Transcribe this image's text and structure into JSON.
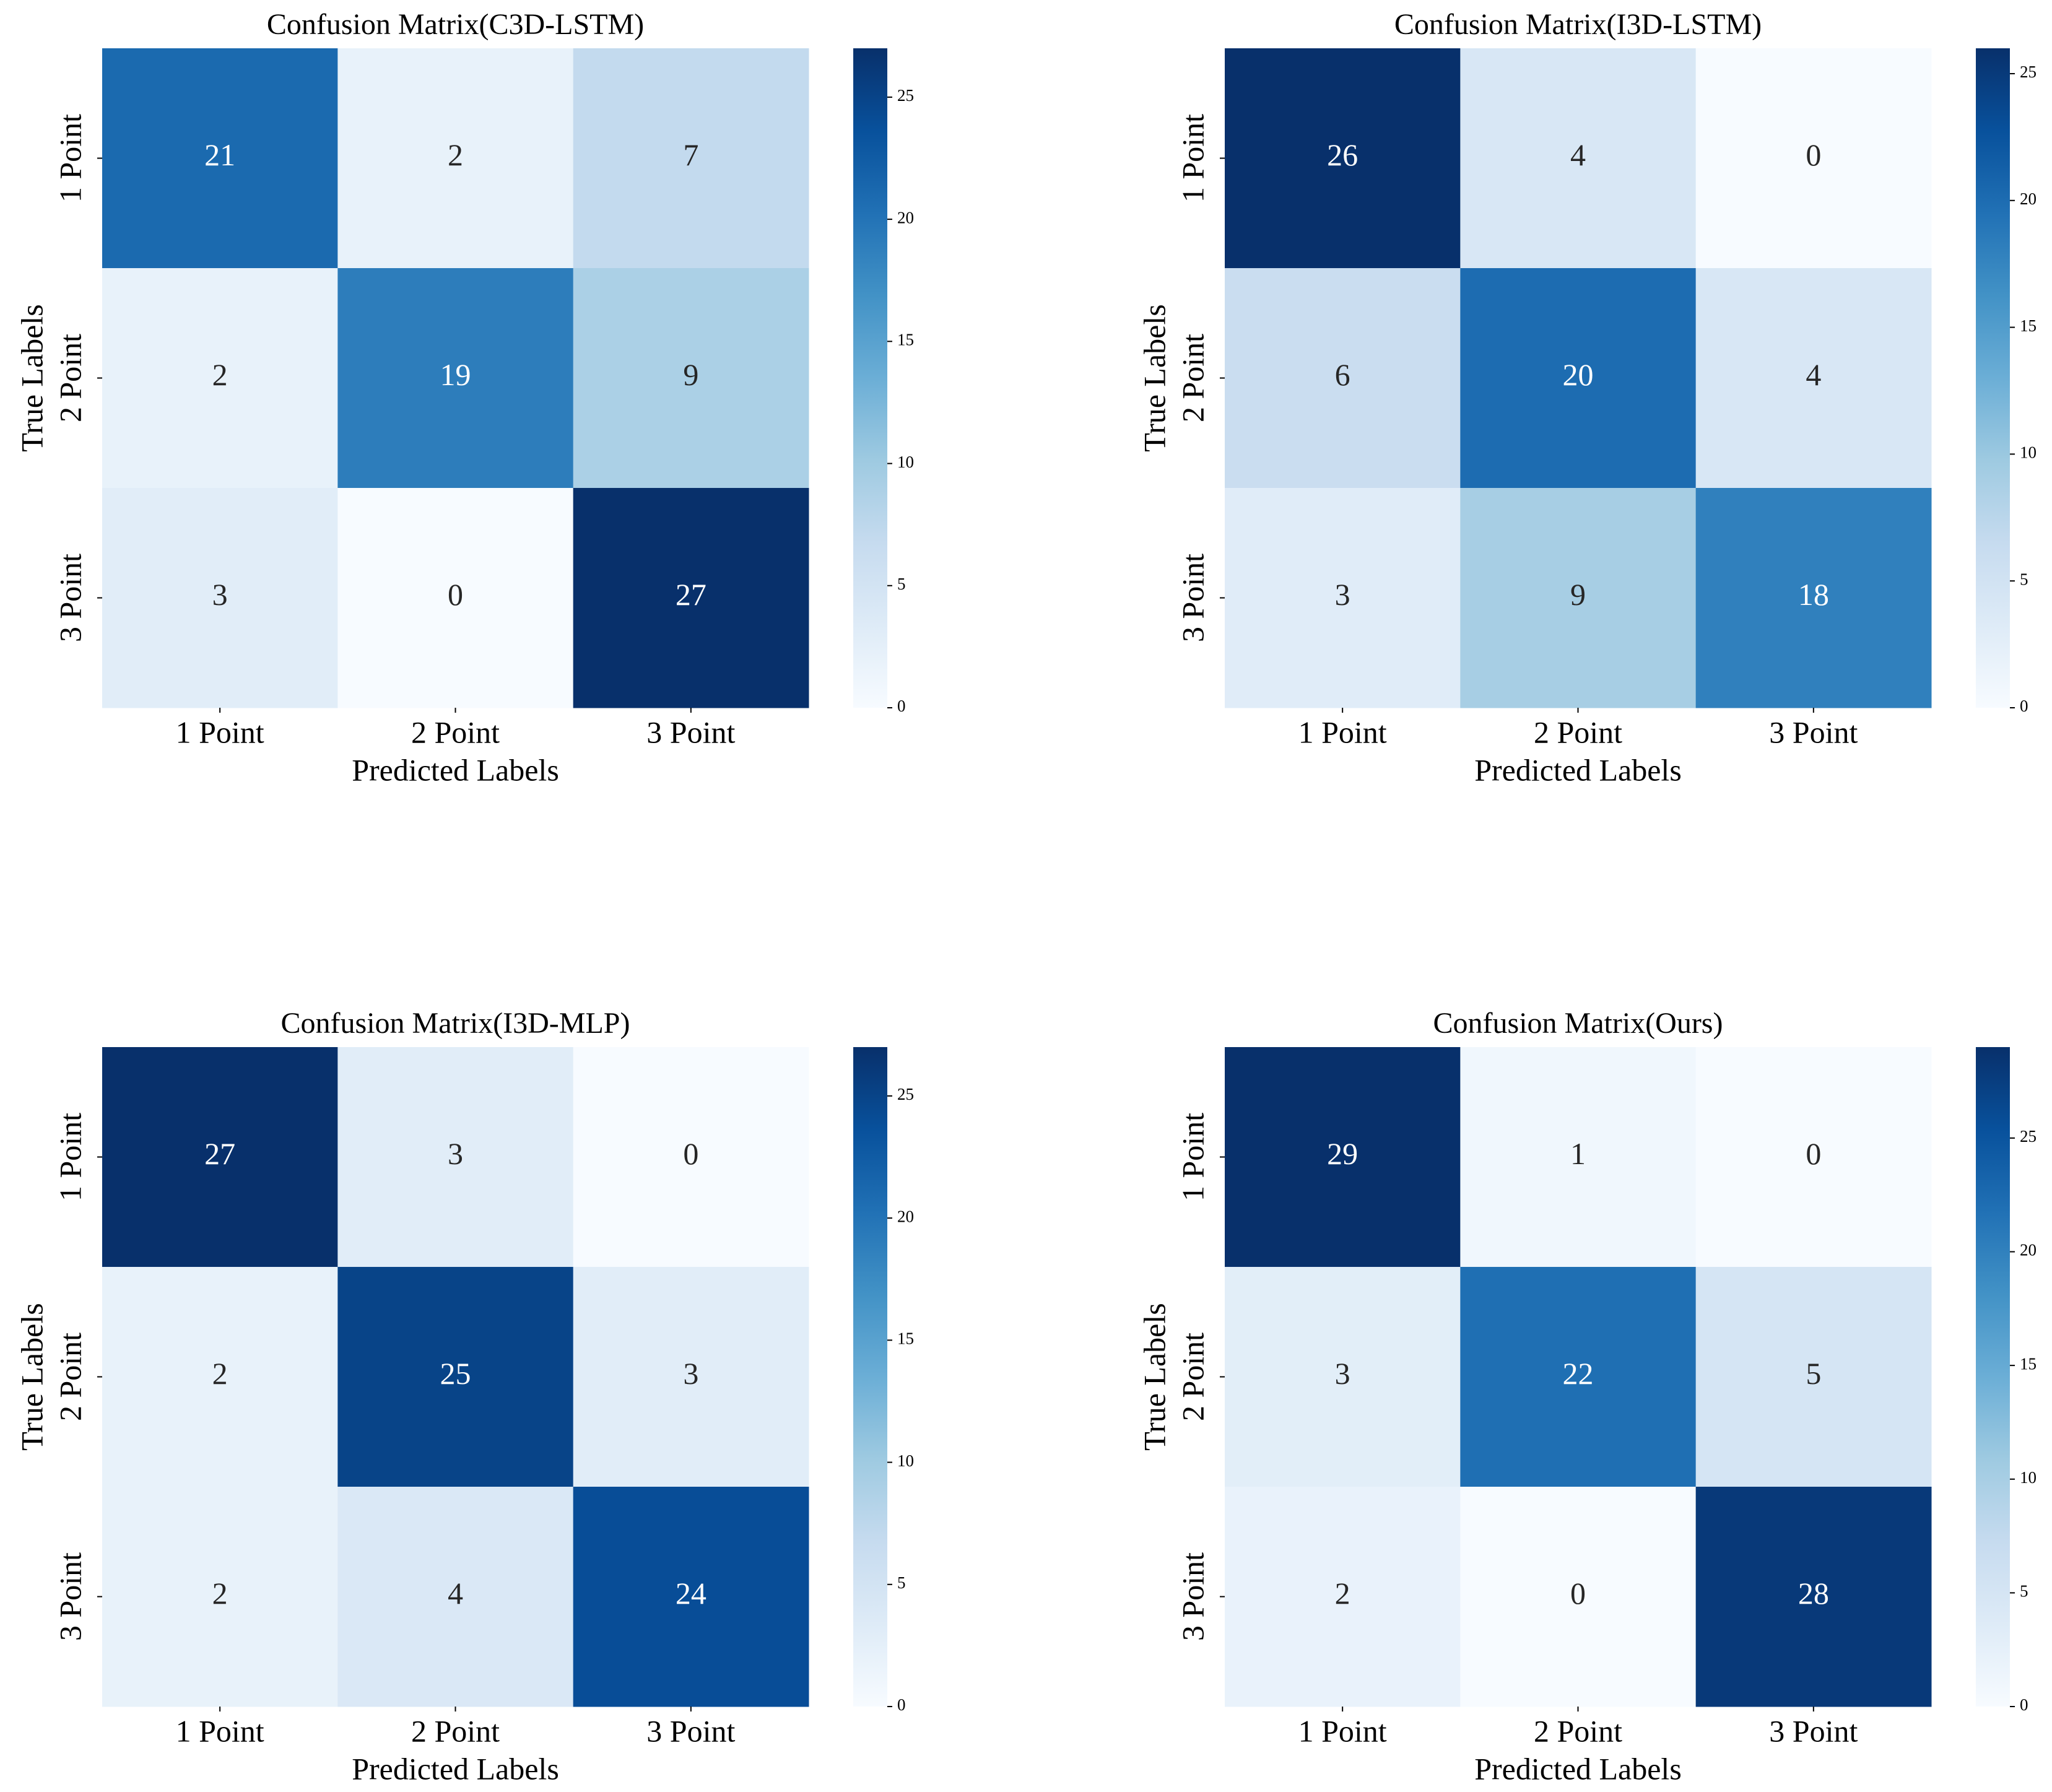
{
  "chart_data": [
    {
      "type": "heatmap",
      "title": "Confusion Matrix(C3D-LSTM)",
      "xlabel": "Predicted Labels",
      "ylabel": "True Labels",
      "x_categories": [
        "1 Point",
        "2 Point",
        "3 Point"
      ],
      "y_categories": [
        "1 Point",
        "2 Point",
        "3 Point"
      ],
      "values": [
        [
          21,
          2,
          7
        ],
        [
          2,
          19,
          9
        ],
        [
          3,
          0,
          27
        ]
      ],
      "zlim": [
        0,
        27
      ],
      "zticks": [
        0,
        5,
        10,
        15,
        20,
        25
      ],
      "colormap": [
        "#f7fbff",
        "#deebf7",
        "#c6dbef",
        "#9ecae1",
        "#6baed6",
        "#4292c6",
        "#2171b5",
        "#08519c",
        "#08306b"
      ]
    },
    {
      "type": "heatmap",
      "title": "Confusion Matrix(I3D-LSTM)",
      "xlabel": "Predicted Labels",
      "ylabel": "True Labels",
      "x_categories": [
        "1 Point",
        "2 Point",
        "3 Point"
      ],
      "y_categories": [
        "1 Point",
        "2 Point",
        "3 Point"
      ],
      "values": [
        [
          26,
          4,
          0
        ],
        [
          6,
          20,
          4
        ],
        [
          3,
          9,
          18
        ]
      ],
      "zlim": [
        0,
        26
      ],
      "zticks": [
        0,
        5,
        10,
        15,
        20,
        25
      ],
      "colormap": [
        "#f7fbff",
        "#deebf7",
        "#c6dbef",
        "#9ecae1",
        "#6baed6",
        "#4292c6",
        "#2171b5",
        "#08519c",
        "#08306b"
      ]
    },
    {
      "type": "heatmap",
      "title": "Confusion Matrix(I3D-MLP)",
      "xlabel": "Predicted Labels",
      "ylabel": "True Labels",
      "x_categories": [
        "1 Point",
        "2 Point",
        "3 Point"
      ],
      "y_categories": [
        "1 Point",
        "2 Point",
        "3 Point"
      ],
      "values": [
        [
          27,
          3,
          0
        ],
        [
          2,
          25,
          3
        ],
        [
          2,
          4,
          24
        ]
      ],
      "zlim": [
        0,
        27
      ],
      "zticks": [
        0,
        5,
        10,
        15,
        20,
        25
      ],
      "colormap": [
        "#f7fbff",
        "#deebf7",
        "#c6dbef",
        "#9ecae1",
        "#6baed6",
        "#4292c6",
        "#2171b5",
        "#08519c",
        "#08306b"
      ]
    },
    {
      "type": "heatmap",
      "title": "Confusion Matrix(Ours)",
      "xlabel": "Predicted Labels",
      "ylabel": "True Labels",
      "x_categories": [
        "1 Point",
        "2 Point",
        "3 Point"
      ],
      "y_categories": [
        "1 Point",
        "2 Point",
        "3 Point"
      ],
      "values": [
        [
          29,
          1,
          0
        ],
        [
          3,
          22,
          5
        ],
        [
          2,
          0,
          28
        ]
      ],
      "zlim": [
        0,
        29
      ],
      "zticks": [
        0,
        5,
        10,
        15,
        20,
        25
      ],
      "colormap": [
        "#f7fbff",
        "#deebf7",
        "#c6dbef",
        "#9ecae1",
        "#6baed6",
        "#4292c6",
        "#2171b5",
        "#08519c",
        "#08306b"
      ]
    }
  ]
}
